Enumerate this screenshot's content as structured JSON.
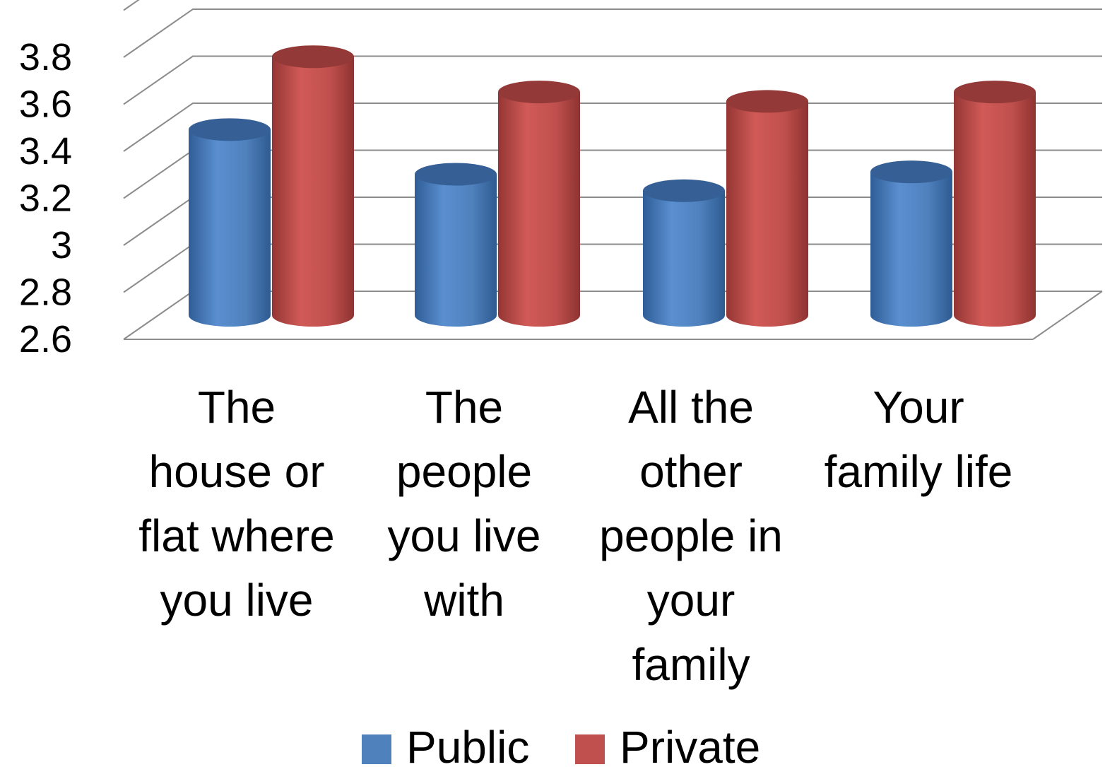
{
  "chart_data": {
    "type": "bar",
    "style": "3d-cylinder",
    "categories": [
      [
        "The",
        "house or",
        "flat where",
        "you live"
      ],
      [
        "The",
        "people",
        "you live",
        "with"
      ],
      [
        "All the",
        "other",
        "people in",
        "your",
        "family"
      ],
      [
        "Your",
        "family life"
      ]
    ],
    "series": [
      {
        "name": "Public",
        "color": "#4F81BD",
        "values": [
          3.39,
          3.2,
          3.13,
          3.21
        ]
      },
      {
        "name": "Private",
        "color": "#C0504D",
        "values": [
          3.7,
          3.55,
          3.51,
          3.55
        ]
      }
    ],
    "yticks": [
      "2.6",
      "2.8",
      "3",
      "3.2",
      "3.4",
      "3.6",
      "3.8"
    ],
    "ylim": [
      2.6,
      4.0
    ],
    "grid": true,
    "legend_position": "bottom"
  }
}
